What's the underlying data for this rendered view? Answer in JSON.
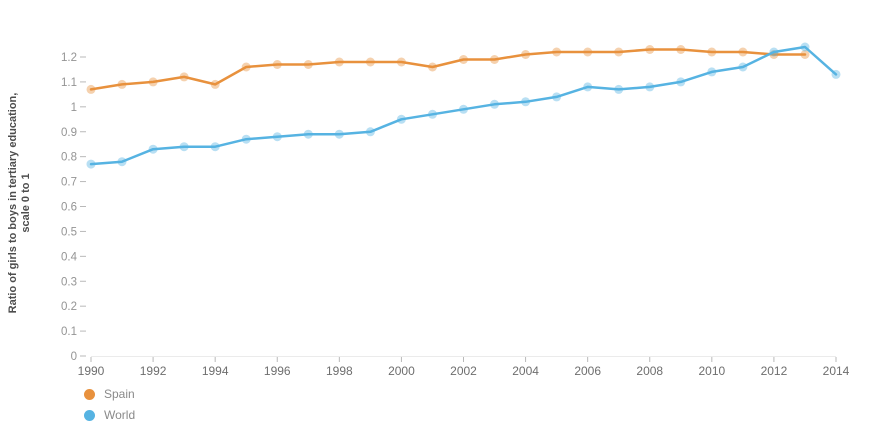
{
  "y_axis": {
    "label_lines": [
      "Ratio of girls to boys in tertiary education,",
      "scale 0 to 1"
    ]
  },
  "chart_data": {
    "type": "line",
    "title": "",
    "xlabel": "",
    "ylabel": "Ratio of girls to boys in tertiary education, scale 0 to 1",
    "x": [
      1990,
      1991,
      1992,
      1993,
      1994,
      1995,
      1996,
      1997,
      1998,
      1999,
      2000,
      2001,
      2002,
      2003,
      2004,
      2005,
      2006,
      2007,
      2008,
      2009,
      2010,
      2011,
      2012,
      2013,
      2014
    ],
    "xticks": [
      1990,
      1992,
      1994,
      1996,
      1998,
      2000,
      2002,
      2004,
      2006,
      2008,
      2010,
      2012,
      2014
    ],
    "yticks": [
      0,
      0.1,
      0.2,
      0.3,
      0.4,
      0.5,
      0.6,
      0.7,
      0.8,
      0.9,
      1,
      1.1,
      1.2
    ],
    "ylim": [
      0,
      1.2
    ],
    "grid": false,
    "legend_position": "bottom-left",
    "series": [
      {
        "name": "Spain",
        "color": "#E8913D",
        "values": [
          1.07,
          1.09,
          1.1,
          1.12,
          1.09,
          1.16,
          1.17,
          1.17,
          1.18,
          1.18,
          1.18,
          1.16,
          1.19,
          1.19,
          1.21,
          1.22,
          1.22,
          1.22,
          1.23,
          1.23,
          1.22,
          1.22,
          1.21,
          1.21,
          null
        ]
      },
      {
        "name": "World",
        "color": "#56B3E2",
        "values": [
          0.77,
          0.78,
          0.83,
          0.84,
          0.84,
          0.87,
          0.88,
          0.89,
          0.89,
          0.9,
          0.95,
          0.97,
          0.99,
          1.01,
          1.02,
          1.04,
          1.08,
          1.07,
          1.08,
          1.1,
          1.14,
          1.16,
          1.22,
          1.24,
          1.13
        ]
      }
    ]
  }
}
